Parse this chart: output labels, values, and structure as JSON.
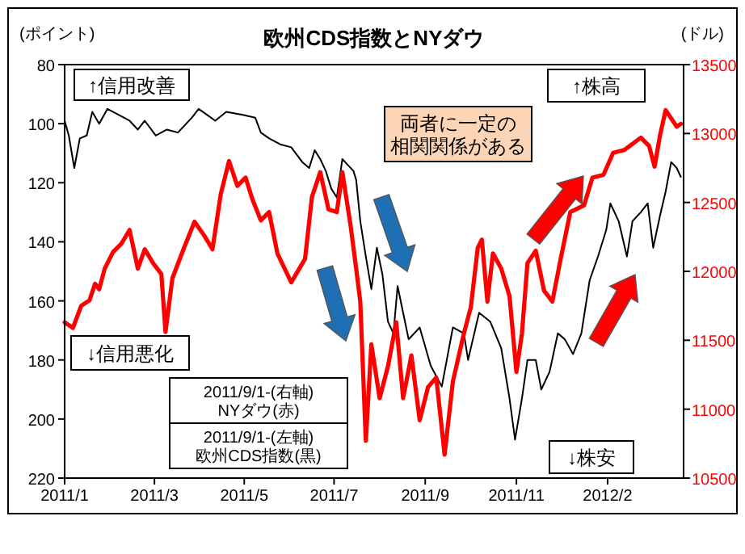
{
  "chart_data": {
    "type": "line",
    "title": "欧州CDS指数とNYダウ",
    "ylabel": "(ポイント)",
    "y2label": "(ドル)",
    "xlim": [
      "2011-01-03",
      "2012-03-26"
    ],
    "xticks": [
      {
        "value": "2011-01-03",
        "label": "2011/1"
      },
      {
        "value": "2011-03-09",
        "label": "2011/3"
      },
      {
        "value": "2011-05-13",
        "label": "2011/5"
      },
      {
        "value": "2011-07-17",
        "label": "2011/7"
      },
      {
        "value": "2011-09-21",
        "label": "2011/9"
      },
      {
        "value": "2011-11-26",
        "label": "2011/11"
      },
      {
        "value": "2012-01-31",
        "label": "2012/2"
      }
    ],
    "ylim": [
      220,
      80
    ],
    "yticks": [
      80,
      100,
      120,
      140,
      160,
      180,
      200,
      220
    ],
    "y2lim": [
      10500,
      13500
    ],
    "y2ticks": [
      10500,
      11000,
      11500,
      12000,
      12500,
      13000,
      13500
    ],
    "grid": false,
    "marker": "none",
    "line_style": "solid",
    "series": [
      {
        "color": "#000000",
        "x": [
          "2011-01-03",
          "2011-01-06",
          "2011-01-10",
          "2011-01-14",
          "2011-01-19",
          "2011-01-23",
          "2011-01-28",
          "2011-02-03",
          "2011-02-11",
          "2011-02-19",
          "2011-02-25",
          "2011-03-02",
          "2011-03-10",
          "2011-03-18",
          "2011-03-26",
          "2011-04-05",
          "2011-04-10",
          "2011-04-16",
          "2011-04-22",
          "2011-04-30",
          "2011-05-12",
          "2011-05-21",
          "2011-05-25",
          "2011-05-31",
          "2011-06-08",
          "2011-06-16",
          "2011-06-24",
          "2011-06-29",
          "2011-07-03",
          "2011-07-07",
          "2011-07-11",
          "2011-07-15",
          "2011-07-19",
          "2011-07-23",
          "2011-07-27",
          "2011-07-31",
          "2011-08-02",
          "2011-08-05",
          "2011-08-09",
          "2011-08-13",
          "2011-08-17",
          "2011-08-21",
          "2011-08-25",
          "2011-08-29",
          "2011-09-01",
          "2011-09-05",
          "2011-09-09",
          "2011-09-17",
          "2011-09-25",
          "2011-10-03",
          "2011-10-11",
          "2011-10-19",
          "2011-10-22",
          "2011-10-30",
          "2011-11-07",
          "2011-11-15",
          "2011-11-21",
          "2011-11-25",
          "2011-11-30",
          "2011-12-04",
          "2011-12-10",
          "2011-12-14",
          "2011-12-20",
          "2011-12-26",
          "2011-12-31",
          "2012-01-06",
          "2012-01-12",
          "2012-01-18",
          "2012-01-24",
          "2012-01-30",
          "2012-02-02",
          "2012-02-08",
          "2012-02-14",
          "2012-02-18",
          "2012-02-24",
          "2012-02-29",
          "2012-03-04",
          "2012-03-09",
          "2012-03-13",
          "2012-03-17",
          "2012-03-21",
          "2012-03-24"
        ],
        "values": [
          99,
          104,
          115,
          105,
          104,
          96,
          100,
          95,
          97,
          99,
          102,
          99,
          104,
          102,
          103,
          98,
          95,
          97,
          99,
          96,
          97,
          98,
          103,
          105,
          107,
          108,
          113,
          115,
          109,
          112,
          116,
          122,
          125,
          112,
          114,
          116,
          119,
          133,
          145,
          156,
          142,
          151,
          167,
          171,
          155,
          164,
          173,
          169,
          182,
          189,
          169,
          171,
          180,
          164,
          167,
          176,
          193,
          207,
          193,
          180,
          180,
          190,
          184,
          171,
          173,
          178,
          171,
          153,
          145,
          136,
          127,
          133,
          145,
          133,
          130,
          127,
          142,
          131,
          123,
          113,
          115,
          118
        ]
      },
      {
        "color": "#ff0000",
        "axis": "y2",
        "x": [
          "2011-01-03",
          "2011-01-09",
          "2011-01-15",
          "2011-01-21",
          "2011-01-25",
          "2011-01-28",
          "2011-02-01",
          "2011-02-07",
          "2011-02-13",
          "2011-02-19",
          "2011-02-25",
          "2011-03-02",
          "2011-03-08",
          "2011-03-14",
          "2011-03-17",
          "2011-03-22",
          "2011-03-30",
          "2011-04-07",
          "2011-04-14",
          "2011-04-20",
          "2011-04-26",
          "2011-05-02",
          "2011-05-08",
          "2011-05-14",
          "2011-05-19",
          "2011-05-25",
          "2011-05-31",
          "2011-06-06",
          "2011-06-16",
          "2011-06-26",
          "2011-07-01",
          "2011-07-07",
          "2011-07-13",
          "2011-07-19",
          "2011-07-23",
          "2011-07-29",
          "2011-08-02",
          "2011-08-05",
          "2011-08-09",
          "2011-08-13",
          "2011-08-19",
          "2011-08-25",
          "2011-08-31",
          "2011-09-05",
          "2011-09-11",
          "2011-09-17",
          "2011-09-23",
          "2011-09-29",
          "2011-10-05",
          "2011-10-11",
          "2011-10-19",
          "2011-10-24",
          "2011-10-29",
          "2011-11-01",
          "2011-11-05",
          "2011-11-09",
          "2011-11-15",
          "2011-11-21",
          "2011-11-26",
          "2011-11-30",
          "2011-12-04",
          "2011-12-10",
          "2011-12-16",
          "2011-12-22",
          "2011-12-28",
          "2012-01-04",
          "2012-01-14",
          "2012-01-20",
          "2012-01-28",
          "2012-02-04",
          "2012-02-12",
          "2012-02-24",
          "2012-03-01",
          "2012-03-05",
          "2012-03-09",
          "2012-03-13",
          "2012-03-17",
          "2012-03-21",
          "2012-03-24"
        ],
        "values": [
          11630,
          11590,
          11750,
          11790,
          11910,
          11870,
          12020,
          12140,
          12200,
          12300,
          12020,
          12160,
          12060,
          11980,
          11560,
          11950,
          12160,
          12360,
          12260,
          12160,
          12560,
          12800,
          12620,
          12680,
          12520,
          12370,
          12430,
          12130,
          11920,
          12090,
          12540,
          12720,
          12450,
          12430,
          12720,
          12330,
          12020,
          11780,
          10770,
          11470,
          11080,
          11310,
          11630,
          11080,
          11390,
          10920,
          11160,
          11230,
          10670,
          11200,
          11550,
          11740,
          12170,
          12230,
          11780,
          12130,
          12020,
          11820,
          11270,
          11550,
          12060,
          12150,
          11860,
          11780,
          12090,
          12430,
          12480,
          12680,
          12700,
          12860,
          12880,
          12970,
          12910,
          12760,
          12990,
          13170,
          13110,
          13050,
          13070
        ]
      }
    ],
    "annotations": [
      "↑信用改善",
      "↓信用悪化",
      "↑株高",
      "↓株安",
      "両者に一定の相関関係がある",
      "2011/9/1-(右軸)\nNYダウ(赤)",
      "2011/9/1-(左軸)\n欧州CDS指数(黒)"
    ]
  }
}
